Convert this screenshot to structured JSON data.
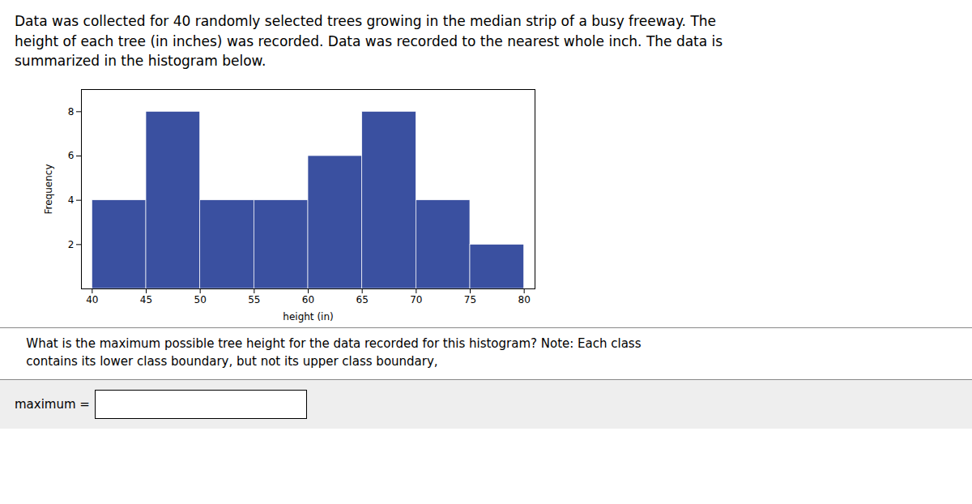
{
  "chart_data": {
    "type": "histogram",
    "title": "Data was collected for 40 randomly selected trees growing in the median strip of a busy freeway. The\nheight of each tree (in inches) was recorded. Data was recorded to the nearest whole inch. The data is\nsummarized in the histogram below.",
    "bins": [
      40,
      45,
      50,
      55,
      60,
      65,
      70,
      75,
      80
    ],
    "values": [
      4,
      8,
      4,
      4,
      6,
      8,
      4,
      2
    ],
    "color": "#3a50a0",
    "xlabel": "height (in)",
    "ylabel": "Frequency",
    "xlim": [
      39,
      81
    ],
    "xticks": [
      40,
      45,
      50,
      55,
      60,
      65,
      70,
      75,
      80
    ],
    "ylim": [
      0,
      9
    ],
    "yticks": [
      2,
      4,
      6,
      8
    ],
    "grid": false,
    "annotations": [
      "   What is the maximum possible tree height for the data recorded for this histogram? Note: Each class\n   contains its lower class boundary, but not its upper class boundary,",
      "maximum = "
    ]
  }
}
